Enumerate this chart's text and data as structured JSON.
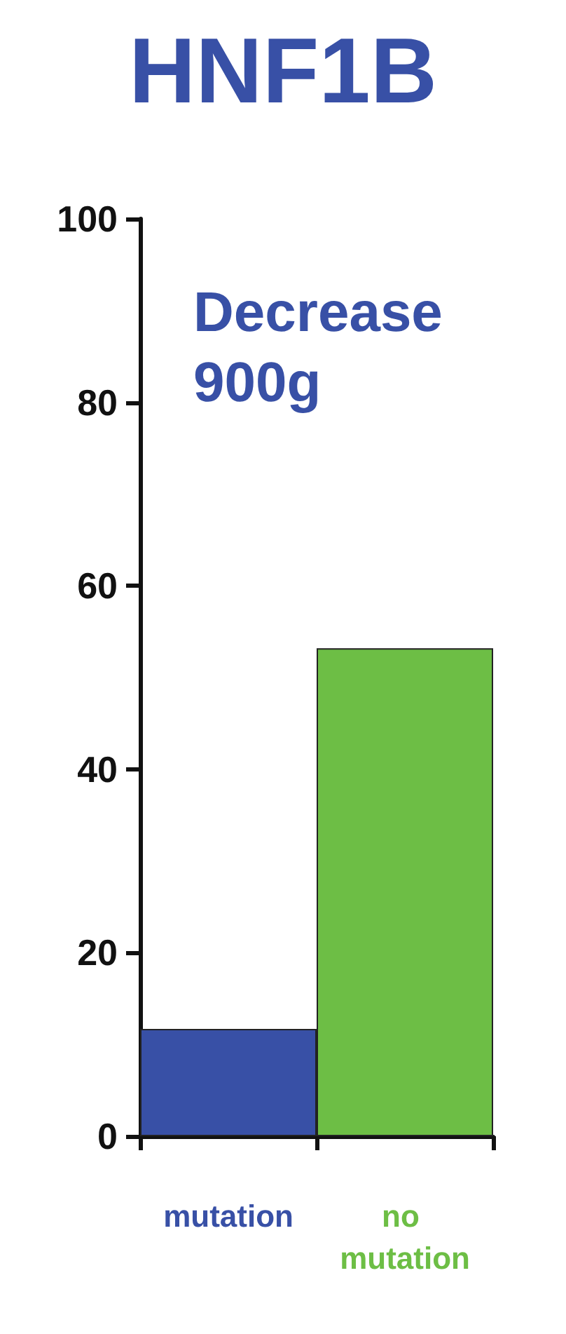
{
  "chart_data": {
    "type": "bar",
    "title": "HNF1B",
    "annotations": [
      "Decrease 900g"
    ],
    "categories": [
      "mutation",
      "no mutation"
    ],
    "values": [
      11.7,
      53.2
    ],
    "colors": [
      "#3850a6",
      "#6dbe45"
    ],
    "ylim": [
      0,
      100
    ],
    "yticks": [
      0,
      20,
      40,
      60,
      80,
      100
    ],
    "grid": false
  }
}
